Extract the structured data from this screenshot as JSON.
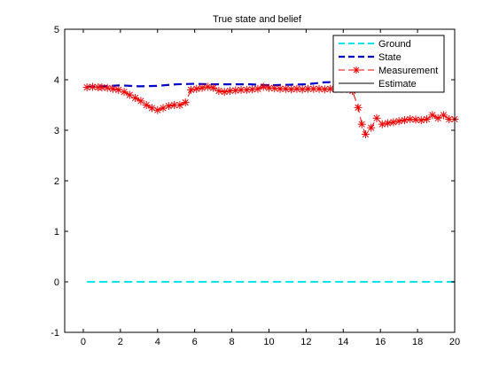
{
  "chart_data": {
    "type": "line",
    "title": "True state and belief",
    "xlabel": "",
    "ylabel": "",
    "xlim": [
      -1,
      20
    ],
    "ylim": [
      -1,
      5
    ],
    "xticks": [
      "0",
      "2",
      "4",
      "6",
      "8",
      "10",
      "12",
      "14",
      "16",
      "18",
      "20"
    ],
    "yticks": [
      "-1",
      "0",
      "1",
      "2",
      "3",
      "4",
      "5"
    ],
    "grid": false,
    "legend_position": "top-right",
    "series": [
      {
        "name": "Ground",
        "color": "#00e5ee",
        "style": "dashed",
        "marker": "none",
        "x": [
          0.2,
          20
        ],
        "y": [
          0,
          0
        ]
      },
      {
        "name": "State",
        "color": "#0000cc",
        "style": "dashed",
        "marker": "none",
        "x": [
          0.2,
          1,
          2,
          3,
          4,
          5,
          6,
          7,
          8,
          9,
          10,
          11,
          12,
          13,
          14
        ],
        "y": [
          3.86,
          3.87,
          3.89,
          3.87,
          3.88,
          3.91,
          3.92,
          3.91,
          3.91,
          3.91,
          3.89,
          3.9,
          3.91,
          3.95,
          3.96
        ]
      },
      {
        "name": "Measurement",
        "color": "#ee0000",
        "style": "dashed",
        "marker": "star",
        "x": [
          0.2,
          0.5,
          0.8,
          1.0,
          1.3,
          1.6,
          1.9,
          2.2,
          2.5,
          2.8,
          3.1,
          3.4,
          3.7,
          4.0,
          4.3,
          4.6,
          4.9,
          5.2,
          5.5,
          5.8,
          6.1,
          6.4,
          6.7,
          7.0,
          7.3,
          7.6,
          7.9,
          8.2,
          8.5,
          8.8,
          9.1,
          9.4,
          9.7,
          10.0,
          10.3,
          10.6,
          10.9,
          11.2,
          11.5,
          11.8,
          12.1,
          12.4,
          12.7,
          13.0,
          13.3,
          13.6,
          13.9,
          14.2,
          14.5,
          14.8,
          15.0,
          15.2,
          15.5,
          15.8,
          16.1,
          16.4,
          16.7,
          17.0,
          17.3,
          17.6,
          17.9,
          18.2,
          18.5,
          18.8,
          19.1,
          19.4,
          19.7,
          20.0
        ],
        "y": [
          3.85,
          3.86,
          3.85,
          3.85,
          3.84,
          3.82,
          3.8,
          3.76,
          3.7,
          3.64,
          3.58,
          3.5,
          3.44,
          3.4,
          3.44,
          3.48,
          3.5,
          3.5,
          3.55,
          3.8,
          3.82,
          3.84,
          3.86,
          3.84,
          3.78,
          3.76,
          3.78,
          3.79,
          3.8,
          3.8,
          3.81,
          3.82,
          3.86,
          3.84,
          3.83,
          3.82,
          3.82,
          3.81,
          3.82,
          3.81,
          3.82,
          3.82,
          3.82,
          3.81,
          3.82,
          3.82,
          3.82,
          3.82,
          3.78,
          3.45,
          3.12,
          2.92,
          3.05,
          3.24,
          3.12,
          3.14,
          3.16,
          3.18,
          3.2,
          3.22,
          3.21,
          3.2,
          3.22,
          3.3,
          3.24,
          3.3,
          3.22,
          3.22
        ]
      },
      {
        "name": "Estimate",
        "color": "#000000",
        "style": "solid",
        "marker": "none",
        "x": [],
        "y": []
      }
    ]
  }
}
